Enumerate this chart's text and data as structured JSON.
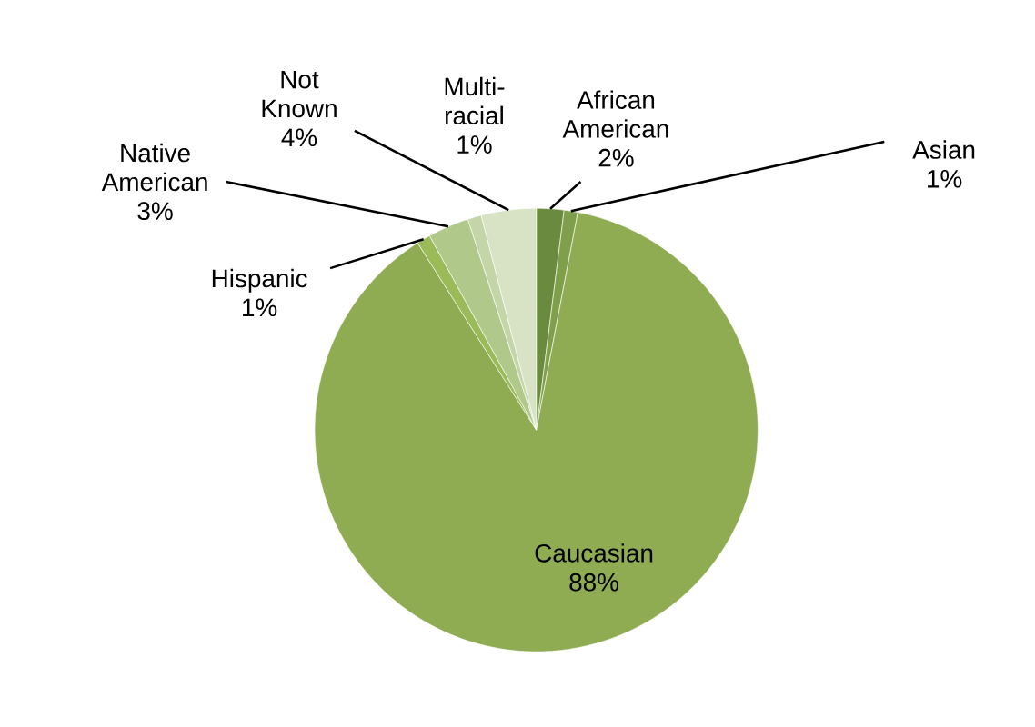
{
  "chart_data": {
    "type": "pie",
    "categories": [
      "African American",
      "Asian",
      "Caucasian",
      "Hispanic",
      "Native American",
      "Multi-racial",
      "Not Known"
    ],
    "values": [
      2,
      1,
      88,
      1,
      3,
      1,
      4
    ],
    "value_labels": [
      "2%",
      "1%",
      "88%",
      "1%",
      "3%",
      "1%",
      "4%"
    ],
    "colors": [
      "#6a8a3e",
      "#7f9f4a",
      "#8fac52",
      "#9bbb59",
      "#b0c98a",
      "#c4d6a8",
      "#d7e3c4"
    ],
    "legend": false
  }
}
